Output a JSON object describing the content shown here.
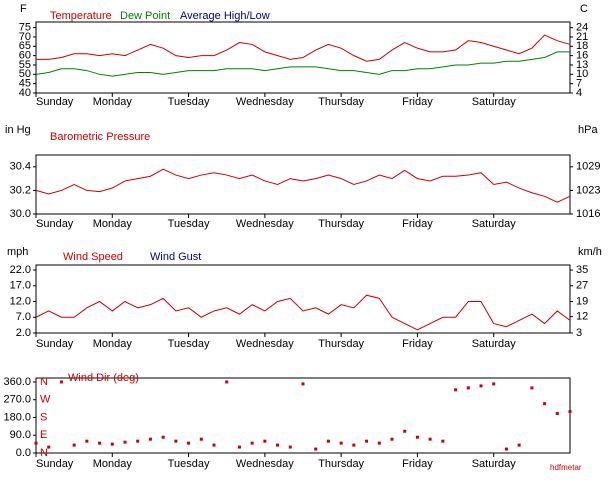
{
  "chart_data": [
    {
      "type": "line",
      "y_label": "F",
      "y2_label": "C",
      "x": [
        0,
        4,
        8,
        12,
        16,
        20,
        24,
        28,
        32,
        36,
        40,
        44,
        48,
        52,
        56,
        60,
        64,
        68,
        72,
        76,
        80,
        84,
        88,
        92,
        96,
        100,
        104,
        108,
        112,
        116,
        120,
        124,
        128,
        132,
        136,
        140,
        144,
        148,
        152,
        156,
        160,
        164,
        168
      ],
      "xlim": [
        0,
        168
      ],
      "xticks": [
        {
          "value": 0,
          "label": "Sunday"
        },
        {
          "value": 24,
          "label": "Monday"
        },
        {
          "value": 48,
          "label": "Tuesday"
        },
        {
          "value": 72,
          "label": "Wednesday"
        },
        {
          "value": 96,
          "label": "Thursday"
        },
        {
          "value": 120,
          "label": "Friday"
        },
        {
          "value": 144,
          "label": "Saturday"
        }
      ],
      "ylim": [
        40,
        78
      ],
      "yticks": [
        40,
        45,
        50,
        55,
        60,
        65,
        70,
        75
      ],
      "y2lim": [
        4.44,
        25.56
      ],
      "y2ticks": [
        {
          "value": 4.44,
          "label": "4"
        },
        {
          "value": 7.22,
          "label": "7"
        },
        10,
        {
          "value": 12.78,
          "label": "13"
        },
        {
          "value": 15.56,
          "label": "16"
        },
        {
          "value": 18.33,
          "label": "18"
        },
        {
          "value": 21.11,
          "label": "21"
        },
        {
          "value": 23.89,
          "label": "24"
        }
      ],
      "series": [
        {
          "name": "Temperature",
          "color": "#cc0000",
          "values": [
            58,
            58,
            59,
            61,
            61,
            60,
            61,
            60,
            63,
            66,
            64,
            60,
            59,
            60,
            60,
            63,
            67,
            66,
            62,
            60,
            58,
            59,
            63,
            66,
            64,
            60,
            57,
            58,
            63,
            67,
            64,
            62,
            62,
            63,
            68,
            67,
            65,
            63,
            61,
            64,
            71,
            68,
            66
          ]
        },
        {
          "name": "Dew Point",
          "color": "#008000",
          "values": [
            50,
            51,
            53,
            53,
            52,
            50,
            49,
            50,
            51,
            51,
            50,
            51,
            52,
            52,
            52,
            53,
            53,
            53,
            52,
            53,
            54,
            54,
            54,
            53,
            52,
            52,
            51,
            50,
            52,
            52,
            53,
            53,
            54,
            55,
            55,
            56,
            56,
            57,
            57,
            58,
            59,
            62,
            62
          ]
        },
        {
          "name": "Average High/Low",
          "color": "#000080",
          "values": [
            null,
            null,
            null,
            null,
            null,
            null,
            null,
            null,
            null,
            null,
            null,
            null,
            null,
            null,
            null,
            null,
            null,
            null,
            null,
            null,
            null,
            null,
            null,
            null,
            null,
            null,
            null,
            null,
            null,
            null,
            null,
            null,
            null,
            null,
            null,
            null,
            null,
            null,
            null,
            null,
            null,
            null,
            null
          ]
        }
      ]
    },
    {
      "type": "line",
      "title": "Barometric Pressure",
      "title_color": "#cc0000",
      "y_label": "in Hg",
      "y2_label": "hPa",
      "x": [
        0,
        4,
        8,
        12,
        16,
        20,
        24,
        28,
        32,
        36,
        40,
        44,
        48,
        52,
        56,
        60,
        64,
        68,
        72,
        76,
        80,
        84,
        88,
        92,
        96,
        100,
        104,
        108,
        112,
        116,
        120,
        124,
        128,
        132,
        136,
        140,
        144,
        148,
        152,
        156,
        160,
        164,
        168
      ],
      "xlim": [
        0,
        168
      ],
      "xticks": [
        {
          "value": 0,
          "label": "Sunday"
        },
        {
          "value": 24,
          "label": "Monday"
        },
        {
          "value": 48,
          "label": "Tuesday"
        },
        {
          "value": 72,
          "label": "Wednesday"
        },
        {
          "value": 96,
          "label": "Thursday"
        },
        {
          "value": 120,
          "label": "Friday"
        },
        {
          "value": 144,
          "label": "Saturday"
        }
      ],
      "ylim": [
        30.0,
        30.5
      ],
      "yticks": [
        {
          "value": 30,
          "label": "30.0"
        },
        30.2,
        30.4
      ],
      "y2lim": [
        1015.9,
        1032.9
      ],
      "y2ticks": [
        {
          "value": 1015.9,
          "label": "1016"
        },
        {
          "value": 1022.7,
          "label": "1023"
        },
        {
          "value": 1029.5,
          "label": "1029"
        }
      ],
      "series": [
        {
          "color": "#cc0000",
          "values": [
            30.2,
            30.17,
            30.2,
            30.25,
            30.2,
            30.19,
            30.22,
            30.28,
            30.3,
            30.32,
            30.38,
            30.33,
            30.3,
            30.33,
            30.35,
            30.33,
            30.3,
            30.33,
            30.28,
            30.25,
            30.3,
            30.28,
            30.3,
            30.33,
            30.3,
            30.25,
            30.28,
            30.33,
            30.3,
            30.37,
            30.3,
            30.28,
            30.32,
            30.32,
            30.33,
            30.35,
            30.25,
            30.27,
            30.22,
            30.18,
            30.15,
            30.1,
            30.15
          ]
        }
      ]
    },
    {
      "type": "line",
      "y_label": "mph",
      "y2_label": "km/h",
      "x": [
        0,
        4,
        8,
        12,
        16,
        20,
        24,
        28,
        32,
        36,
        40,
        44,
        48,
        52,
        56,
        60,
        64,
        68,
        72,
        76,
        80,
        84,
        88,
        92,
        96,
        100,
        104,
        108,
        112,
        116,
        120,
        124,
        128,
        132,
        136,
        140,
        144,
        148,
        152,
        156,
        160,
        164,
        168
      ],
      "xlim": [
        0,
        168
      ],
      "xticks": [
        {
          "value": 0,
          "label": "Sunday"
        },
        {
          "value": 24,
          "label": "Monday"
        },
        {
          "value": 48,
          "label": "Tuesday"
        },
        {
          "value": 72,
          "label": "Wednesday"
        },
        {
          "value": 96,
          "label": "Thursday"
        },
        {
          "value": 120,
          "label": "Friday"
        },
        {
          "value": 144,
          "label": "Saturday"
        }
      ],
      "ylim": [
        2,
        23.6
      ],
      "yticks": [
        {
          "value": 2,
          "label": "2.0"
        },
        {
          "value": 7,
          "label": "7.0"
        },
        {
          "value": 12,
          "label": "12.0"
        },
        {
          "value": 17,
          "label": "17.0"
        },
        {
          "value": 22,
          "label": "22.0"
        }
      ],
      "y2lim": [
        3.22,
        37.97
      ],
      "y2ticks": [
        {
          "value": 3.22,
          "label": "3"
        },
        {
          "value": 11.6,
          "label": "12"
        },
        {
          "value": 19.31,
          "label": "19"
        },
        {
          "value": 27.36,
          "label": "27"
        },
        {
          "value": 35.4,
          "label": "35"
        }
      ],
      "series": [
        {
          "name": "Wind Speed",
          "color": "#cc0000",
          "values": [
            7,
            9,
            7,
            7,
            10,
            12,
            9,
            12,
            10,
            11,
            13,
            9,
            10,
            7,
            9,
            10,
            8,
            11,
            9,
            12,
            13,
            9,
            10,
            8,
            11,
            10,
            14,
            13,
            7,
            5,
            3,
            5,
            7,
            7,
            12,
            12,
            5,
            4,
            6,
            8,
            5,
            9,
            6
          ]
        },
        {
          "name": "Wind Gust",
          "color": "#000080",
          "values": [
            null,
            null,
            null,
            null,
            null,
            null,
            null,
            null,
            null,
            null,
            null,
            null,
            null,
            null,
            null,
            null,
            null,
            null,
            null,
            null,
            null,
            null,
            null,
            null,
            null,
            null,
            null,
            null,
            null,
            null,
            null,
            null,
            null,
            null,
            null,
            null,
            null,
            null,
            null,
            null,
            null,
            null,
            null
          ]
        }
      ]
    },
    {
      "type": "scatter",
      "title": "Wind Dir (deg)",
      "title_color": "#cc0000",
      "color": "#cc0000",
      "credit": "hdfmetar",
      "x": [
        0,
        4,
        8,
        12,
        16,
        20,
        24,
        28,
        32,
        36,
        40,
        44,
        48,
        52,
        56,
        60,
        64,
        68,
        72,
        76,
        80,
        84,
        88,
        92,
        96,
        100,
        104,
        108,
        112,
        116,
        120,
        124,
        128,
        132,
        136,
        140,
        144,
        148,
        152,
        156,
        160,
        164,
        168
      ],
      "xlim": [
        0,
        168
      ],
      "xticks": [
        {
          "value": 0,
          "label": "Sunday"
        },
        {
          "value": 24,
          "label": "Monday"
        },
        {
          "value": 48,
          "label": "Tuesday"
        },
        {
          "value": 72,
          "label": "Wednesday"
        },
        {
          "value": 96,
          "label": "Thursday"
        },
        {
          "value": 120,
          "label": "Friday"
        },
        {
          "value": 144,
          "label": "Saturday"
        }
      ],
      "ylim": [
        0,
        380
      ],
      "yticks": [
        {
          "value": 0,
          "label": "0.0"
        },
        {
          "value": 90,
          "label": "90.0"
        },
        {
          "value": 180,
          "label": "180.0"
        },
        {
          "value": 270,
          "label": "270.0"
        },
        {
          "value": 360,
          "label": "360.0"
        }
      ],
      "compass_ticks": [
        {
          "value": 0,
          "label": "N"
        },
        {
          "value": 90,
          "label": "E"
        },
        {
          "value": 180,
          "label": "S"
        },
        {
          "value": 270,
          "label": "W"
        },
        {
          "value": 360,
          "label": "N"
        }
      ],
      "values": [
        50,
        30,
        360,
        40,
        60,
        50,
        45,
        55,
        60,
        70,
        80,
        60,
        50,
        70,
        40,
        360,
        30,
        50,
        60,
        40,
        30,
        350,
        20,
        60,
        50,
        40,
        60,
        50,
        70,
        110,
        80,
        70,
        60,
        320,
        330,
        340,
        350,
        20,
        40,
        330,
        250,
        200,
        210
      ]
    }
  ]
}
